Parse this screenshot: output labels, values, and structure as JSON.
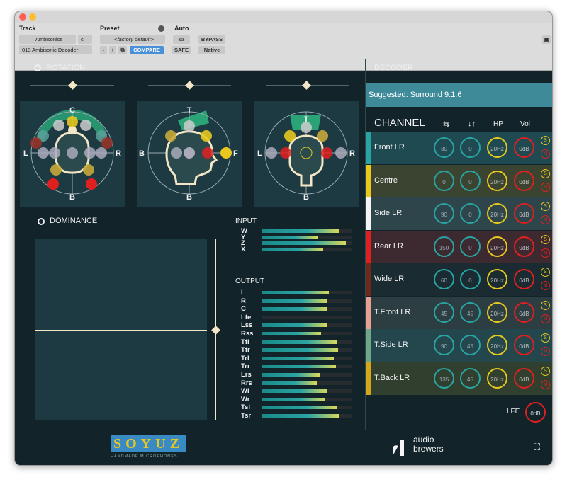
{
  "header": {
    "track_label": "Track",
    "preset_label": "Preset",
    "auto_label": "Auto",
    "track_select": "Ambisonics",
    "track_channel": "c",
    "track_insert": "013 Ambisonic Decoder",
    "preset_value": "<factory default>",
    "compare": "COMPARE",
    "bypass": "BYPASS",
    "safe": "SAFE",
    "native": "Native",
    "minus": "-",
    "plus": "+"
  },
  "rotation": {
    "title": "ROTATION",
    "views": [
      {
        "top": "C",
        "left": "L",
        "right": "R",
        "bottom": "B"
      },
      {
        "top": "T",
        "left": "B",
        "right": "F",
        "bottom": "B"
      },
      {
        "top": "T",
        "left": "L",
        "right": "R",
        "bottom": "B"
      }
    ]
  },
  "dominance": {
    "title": "DOMINANCE"
  },
  "input": {
    "title": "INPUT",
    "channels": [
      {
        "name": "W",
        "level": 0.85
      },
      {
        "name": "Y",
        "level": 0.62
      },
      {
        "name": "Z",
        "level": 0.93
      },
      {
        "name": "X",
        "level": 0.68
      }
    ]
  },
  "output": {
    "title": "OUTPUT",
    "channels": [
      {
        "name": "L",
        "level": 0.74
      },
      {
        "name": "R",
        "level": 0.73
      },
      {
        "name": "C",
        "level": 0.73
      },
      {
        "name": "Lfe",
        "level": 0
      },
      {
        "name": "Lss",
        "level": 0.72
      },
      {
        "name": "Rss",
        "level": 0.66
      },
      {
        "name": "Tfl",
        "level": 0.83
      },
      {
        "name": "Tfr",
        "level": 0.84
      },
      {
        "name": "Trl",
        "level": 0.8
      },
      {
        "name": "Trr",
        "level": 0.82
      },
      {
        "name": "Lrs",
        "level": 0.64
      },
      {
        "name": "Rrs",
        "level": 0.61
      },
      {
        "name": "Wl",
        "level": 0.73
      },
      {
        "name": "Wr",
        "level": 0.7
      },
      {
        "name": "Tsl",
        "level": 0.83
      },
      {
        "name": "Tsr",
        "level": 0.85
      }
    ]
  },
  "decoder": {
    "title": "DECODER",
    "suggested": "Suggested: Surround 9.1.6",
    "channel_header": "CHANNEL",
    "hp_header": "HP",
    "vol_header": "Vol",
    "swap_icon": "swap-icon",
    "polarity_icon": "polarity-icon"
  },
  "channels": [
    {
      "name": "Front LR",
      "color": "#2aa3a3",
      "azimuth": "30",
      "elevation": "0",
      "hp": "20Hz",
      "vol": "0dB",
      "bg": "#1f4a52"
    },
    {
      "name": "Centre",
      "color": "#e8c81e",
      "azimuth": "0",
      "elevation": "0",
      "hp": "20Hz",
      "vol": "0dB",
      "bg": "#3b4430"
    },
    {
      "name": "Side LR",
      "color": "#f4f4f4",
      "azimuth": "90",
      "elevation": "0",
      "hp": "20Hz",
      "vol": "0dB",
      "bg": "#2e464b"
    },
    {
      "name": "Rear LR",
      "color": "#e02020",
      "azimuth": "150",
      "elevation": "0",
      "hp": "20Hz",
      "vol": "0dB",
      "bg": "#3d2a30"
    },
    {
      "name": "Wide LR",
      "color": "#6e2a1a",
      "azimuth": "60",
      "elevation": "0",
      "hp": "20Hz",
      "vol": "0dB",
      "bg": "#1a2c31"
    },
    {
      "name": "T.Front LR",
      "color": "#e8a090",
      "azimuth": "45",
      "elevation": "45",
      "hp": "20Hz",
      "vol": "0dB",
      "bg": "#2c3e42"
    },
    {
      "name": "T.Side LR",
      "color": "#6ea88a",
      "azimuth": "90",
      "elevation": "45",
      "hp": "20Hz",
      "vol": "0dB",
      "bg": "#24474e"
    },
    {
      "name": "T.Back LR",
      "color": "#d4a81a",
      "azimuth": "135",
      "elevation": "45",
      "hp": "20Hz",
      "vol": "0dB",
      "bg": "#31402e"
    }
  ],
  "solo_label": "S",
  "mute_label": "M",
  "lfe": {
    "label": "LFE",
    "vol": "0dB"
  },
  "footer": {
    "soyuz_letters": "SOYUZ",
    "soyuz_sub": "HANDMADE MICROPHONES",
    "brand_line1": "audio",
    "brand_line2": "brewers"
  },
  "colors": {
    "accent_teal": "#2aa3a3",
    "yellow": "#e8c81e",
    "red": "#e02020",
    "suggested_bg": "#3e8a99"
  }
}
